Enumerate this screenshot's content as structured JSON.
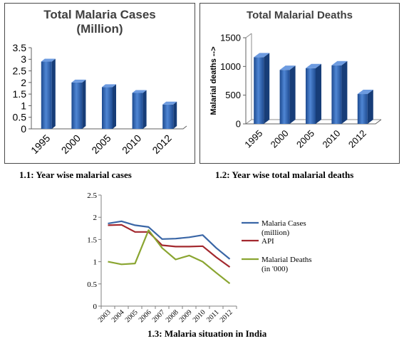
{
  "chart_data": [
    {
      "type": "bar",
      "title": "Total Malaria Cases (Million)",
      "categories": [
        "1995",
        "2000",
        "2005",
        "2010",
        "2012"
      ],
      "values": [
        2.9,
        2.0,
        1.8,
        1.55,
        1.05
      ],
      "ylim": [
        0,
        3.5
      ],
      "yticks": [
        "0",
        "0.5",
        "1",
        "1.5",
        "2",
        "2.5",
        "3",
        "3.5"
      ],
      "xlabel": "",
      "ylabel": "",
      "grid": false,
      "style": "3d-bar",
      "color": "#2f64b4"
    },
    {
      "type": "bar",
      "title": "Total Malarial Deaths",
      "categories": [
        "1995",
        "2000",
        "2005",
        "2010",
        "2012"
      ],
      "values": [
        1160,
        940,
        970,
        1020,
        520
      ],
      "ylim": [
        0,
        1500
      ],
      "yticks": [
        "0",
        "500",
        "1000",
        "1500"
      ],
      "xlabel": "",
      "ylabel": "Malarial deaths -->",
      "grid": false,
      "style": "3d-bar",
      "color": "#2f64b4"
    },
    {
      "type": "line",
      "x": [
        "2003",
        "2004",
        "2005",
        "2006",
        "2007",
        "2008",
        "2009",
        "2010",
        "2011",
        "2012"
      ],
      "ylim": [
        0,
        2.5
      ],
      "yticks": [
        "0",
        "0.5",
        "1",
        "1.5",
        "2",
        "2.5"
      ],
      "legend": "right",
      "grid": false,
      "series": [
        {
          "name": "Malaria Cases (million)",
          "color": "#3a66a6",
          "values": [
            1.86,
            1.91,
            1.82,
            1.78,
            1.51,
            1.52,
            1.55,
            1.6,
            1.31,
            1.06
          ]
        },
        {
          "name": "API",
          "color": "#a3282e",
          "values": [
            1.82,
            1.83,
            1.67,
            1.67,
            1.37,
            1.34,
            1.34,
            1.35,
            1.1,
            0.88
          ]
        },
        {
          "name": "Malarial Deaths (in '000)",
          "color": "#8aa531",
          "values": [
            1.0,
            0.94,
            0.96,
            1.71,
            1.31,
            1.05,
            1.14,
            1.0,
            0.75,
            0.51
          ]
        }
      ]
    }
  ],
  "captions": {
    "c1": "1.1: Year wise malarial cases",
    "c2": "1.2: Year wise total malarial deaths",
    "c3": "1.3: Malaria situation in India"
  },
  "chart1_title_lines": [
    "Total Malaria Cases",
    "(Million)"
  ],
  "chart3_legend": [
    [
      "Malaria Cases",
      "(million)"
    ],
    [
      "API"
    ],
    [
      "Malarial Deaths",
      "(in '000)"
    ]
  ]
}
